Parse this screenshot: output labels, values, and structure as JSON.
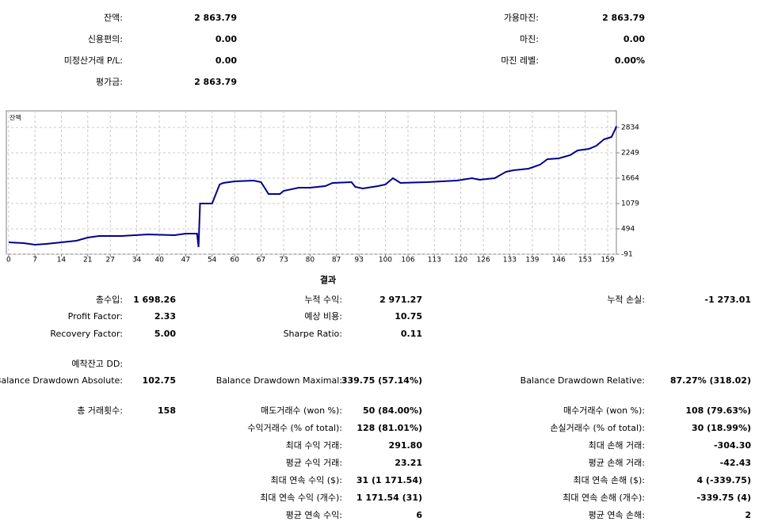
{
  "summary": {
    "rows": [
      {
        "left": {
          "label": "잔액:",
          "value": "2 863.79"
        },
        "right": {
          "label": "가용마진:",
          "value": "2 863.79"
        }
      },
      {
        "left": {
          "label": "신용편의:",
          "value": "0.00"
        },
        "right": {
          "label": "마진:",
          "value": "0.00"
        }
      },
      {
        "left": {
          "label": "미정산거래 P/L:",
          "value": "0.00"
        },
        "right": {
          "label": "마진 레벨:",
          "value": "0.00%"
        }
      },
      {
        "left": {
          "label": "평가금:",
          "value": "2 863.79"
        }
      }
    ]
  },
  "chart_data": {
    "type": "line",
    "title": "잔액",
    "x": [
      0,
      4,
      7,
      10,
      14,
      18,
      21,
      24,
      30,
      37,
      44,
      47,
      50,
      50.4,
      50.8,
      54,
      56,
      57,
      60,
      65,
      67,
      69,
      72,
      73,
      77,
      80,
      84,
      86,
      91,
      92,
      94,
      98,
      100,
      102,
      104,
      111,
      119,
      123,
      125,
      129,
      132,
      134,
      138,
      141,
      143,
      146,
      149,
      151,
      154,
      156,
      158,
      160,
      161,
      161.3
    ],
    "series": [
      {
        "name": "잔액",
        "color": "#00008b",
        "values": [
          183,
          165,
          129,
          147,
          183,
          220,
          293,
          330,
          330,
          366,
          348,
          385,
          385,
          73,
          1079,
          1079,
          1518,
          1554,
          1591,
          1609,
          1573,
          1298,
          1298,
          1372,
          1445,
          1445,
          1481,
          1554,
          1573,
          1463,
          1427,
          1481,
          1518,
          1664,
          1554,
          1573,
          1609,
          1664,
          1627,
          1664,
          1810,
          1847,
          1883,
          1975,
          2103,
          2121,
          2194,
          2304,
          2340,
          2413,
          2560,
          2615,
          2797,
          2864
        ]
      }
    ],
    "xlim": [
      -0.6,
      161.3
    ],
    "ylim": [
      -91,
      3218
    ],
    "xticks": [
      0,
      7,
      14,
      21,
      27,
      34,
      40,
      47,
      54,
      60,
      67,
      73,
      80,
      87,
      93,
      100,
      106,
      113,
      120,
      126,
      133,
      139,
      146,
      153,
      159
    ],
    "yticks": [
      -91,
      494,
      1079,
      1664,
      2249,
      2834
    ],
    "grid": true
  },
  "results": {
    "title": "결과",
    "rows": [
      {
        "left": {
          "label": "총수입:",
          "value": "1 698.26"
        },
        "middle": {
          "label": "누적 수익:",
          "value": "2 971.27"
        },
        "right": {
          "label": "누적 손실:",
          "value": "-1 273.01"
        }
      },
      {
        "left": {
          "label": "Profit Factor:",
          "value": "2.33"
        },
        "middle": {
          "label": "예상 비용:",
          "value": "10.75"
        }
      },
      {
        "left": {
          "label": "Recovery Factor:",
          "value": "5.00"
        },
        "middle": {
          "label": "Sharpe Ratio:",
          "value": "0.11"
        }
      },
      {
        "left": {
          "label": "예착잔고 DD:"
        }
      },
      {
        "left": {
          "label": "Balance Drawdown Absolute:",
          "value": "102.75"
        },
        "middle": {
          "label": "Balance Drawdown Maximal:",
          "value": "339.75 (57.14%)"
        },
        "right": {
          "label": "Balance Drawdown Relative:",
          "value": "87.27% (318.02)"
        }
      },
      {
        "left": {
          "label": "총 거래횟수:",
          "value": "158"
        },
        "middle": {
          "label": "매도거래수 (won %):",
          "value": "50 (84.00%)"
        },
        "right": {
          "label": "매수거래수 (won %):",
          "value": "108 (79.63%)"
        }
      },
      {
        "middle": {
          "label": "수익거래수 (% of total):",
          "value": "128 (81.01%)"
        },
        "right": {
          "label": "손실거래수 (% of total):",
          "value": "30 (18.99%)"
        }
      },
      {
        "middle": {
          "label": "최대 수익 거래:",
          "value": "291.80"
        },
        "right": {
          "label": "최대 손해 거래:",
          "value": "-304.30"
        }
      },
      {
        "middle": {
          "label": "평균 수익 거래:",
          "value": "23.21"
        },
        "right": {
          "label": "평균 손해 거래:",
          "value": "-42.43"
        }
      },
      {
        "middle": {
          "label": "최대 연속 수익 ($):",
          "value": "31 (1 171.54)"
        },
        "right": {
          "label": "최대 연속 손해 ($):",
          "value": "4 (-339.75)"
        }
      },
      {
        "middle": {
          "label": "최대 연속 수익 (개수):",
          "value": "1 171.54 (31)"
        },
        "right": {
          "label": "최대 연속 손해 (개수):",
          "value": "-339.75 (4)"
        }
      },
      {
        "middle": {
          "label": "평균 연속 수익:",
          "value": "6"
        },
        "right": {
          "label": "평균 연속 손해:",
          "value": "2"
        }
      }
    ]
  }
}
